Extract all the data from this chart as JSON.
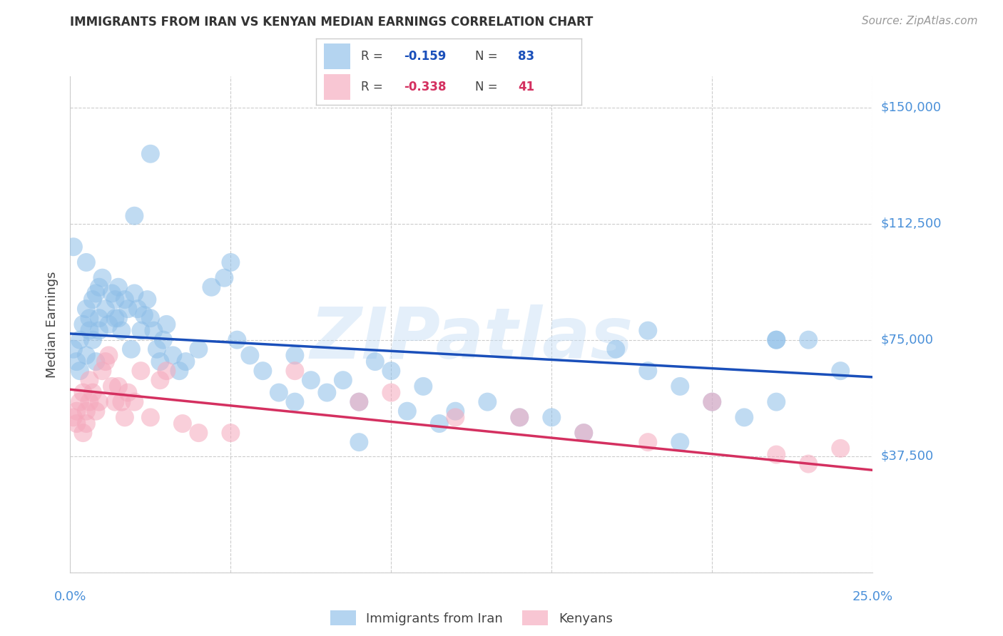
{
  "title": "IMMIGRANTS FROM IRAN VS KENYAN MEDIAN EARNINGS CORRELATION CHART",
  "source": "Source: ZipAtlas.com",
  "ylabel": "Median Earnings",
  "yticks": [
    0,
    37500,
    75000,
    112500,
    150000
  ],
  "ytick_labels": [
    "",
    "$37,500",
    "$75,000",
    "$112,500",
    "$150,000"
  ],
  "xtick_vals": [
    0.0,
    0.05,
    0.1,
    0.15,
    0.2,
    0.25
  ],
  "xlim": [
    0.0,
    0.25
  ],
  "ylim": [
    0,
    160000
  ],
  "watermark": "ZIPatlas",
  "blue_color": "#8dbee8",
  "pink_color": "#f5a8bc",
  "blue_line_color": "#1a4fba",
  "pink_line_color": "#d43060",
  "title_color": "#333333",
  "ylabel_color": "#444444",
  "ytick_color": "#4a90d9",
  "xtick_color": "#4a90d9",
  "source_color": "#999999",
  "grid_color": "#cccccc",
  "legend_r_blue": "-0.159",
  "legend_n_blue": "83",
  "legend_r_pink": "-0.338",
  "legend_n_pink": "41",
  "blue_line_x0": 0.0,
  "blue_line_y0": 77000,
  "blue_line_x1": 0.25,
  "blue_line_y1": 63000,
  "pink_line_x0": 0.0,
  "pink_line_y0": 59000,
  "pink_line_x1": 0.25,
  "pink_line_y1": 33000,
  "blue_scatter_x": [
    0.001,
    0.002,
    0.003,
    0.003,
    0.004,
    0.005,
    0.005,
    0.006,
    0.006,
    0.007,
    0.007,
    0.008,
    0.008,
    0.009,
    0.009,
    0.01,
    0.011,
    0.012,
    0.013,
    0.014,
    0.015,
    0.015,
    0.016,
    0.017,
    0.018,
    0.019,
    0.02,
    0.021,
    0.022,
    0.023,
    0.024,
    0.025,
    0.026,
    0.027,
    0.028,
    0.029,
    0.03,
    0.032,
    0.034,
    0.036,
    0.04,
    0.044,
    0.048,
    0.052,
    0.056,
    0.06,
    0.065,
    0.07,
    0.075,
    0.08,
    0.085,
    0.09,
    0.095,
    0.1,
    0.105,
    0.11,
    0.115,
    0.12,
    0.13,
    0.14,
    0.15,
    0.16,
    0.17,
    0.18,
    0.19,
    0.2,
    0.21,
    0.22,
    0.23,
    0.24,
    0.001,
    0.005,
    0.009,
    0.014,
    0.02,
    0.025,
    0.05,
    0.07,
    0.09,
    0.19,
    0.22,
    0.22,
    0.18
  ],
  "blue_scatter_y": [
    72000,
    68000,
    75000,
    65000,
    80000,
    85000,
    70000,
    82000,
    78000,
    88000,
    75000,
    90000,
    68000,
    82000,
    78000,
    95000,
    85000,
    80000,
    90000,
    88000,
    92000,
    82000,
    78000,
    88000,
    85000,
    72000,
    90000,
    85000,
    78000,
    83000,
    88000,
    82000,
    78000,
    72000,
    68000,
    75000,
    80000,
    70000,
    65000,
    68000,
    72000,
    92000,
    95000,
    75000,
    70000,
    65000,
    58000,
    55000,
    62000,
    58000,
    62000,
    55000,
    68000,
    65000,
    52000,
    60000,
    48000,
    52000,
    55000,
    50000,
    50000,
    45000,
    72000,
    78000,
    60000,
    55000,
    50000,
    75000,
    75000,
    65000,
    105000,
    100000,
    92000,
    82000,
    115000,
    135000,
    100000,
    70000,
    42000,
    42000,
    75000,
    55000,
    65000
  ],
  "pink_scatter_x": [
    0.001,
    0.002,
    0.002,
    0.003,
    0.004,
    0.004,
    0.005,
    0.005,
    0.006,
    0.006,
    0.007,
    0.008,
    0.009,
    0.01,
    0.011,
    0.012,
    0.013,
    0.014,
    0.015,
    0.016,
    0.017,
    0.018,
    0.02,
    0.022,
    0.025,
    0.028,
    0.03,
    0.035,
    0.04,
    0.05,
    0.07,
    0.09,
    0.1,
    0.12,
    0.14,
    0.16,
    0.18,
    0.2,
    0.22,
    0.23,
    0.24
  ],
  "pink_scatter_y": [
    50000,
    52000,
    48000,
    55000,
    45000,
    58000,
    52000,
    48000,
    62000,
    55000,
    58000,
    52000,
    55000,
    65000,
    68000,
    70000,
    60000,
    55000,
    60000,
    55000,
    50000,
    58000,
    55000,
    65000,
    50000,
    62000,
    65000,
    48000,
    45000,
    45000,
    65000,
    55000,
    58000,
    50000,
    50000,
    45000,
    42000,
    55000,
    38000,
    35000,
    40000
  ]
}
